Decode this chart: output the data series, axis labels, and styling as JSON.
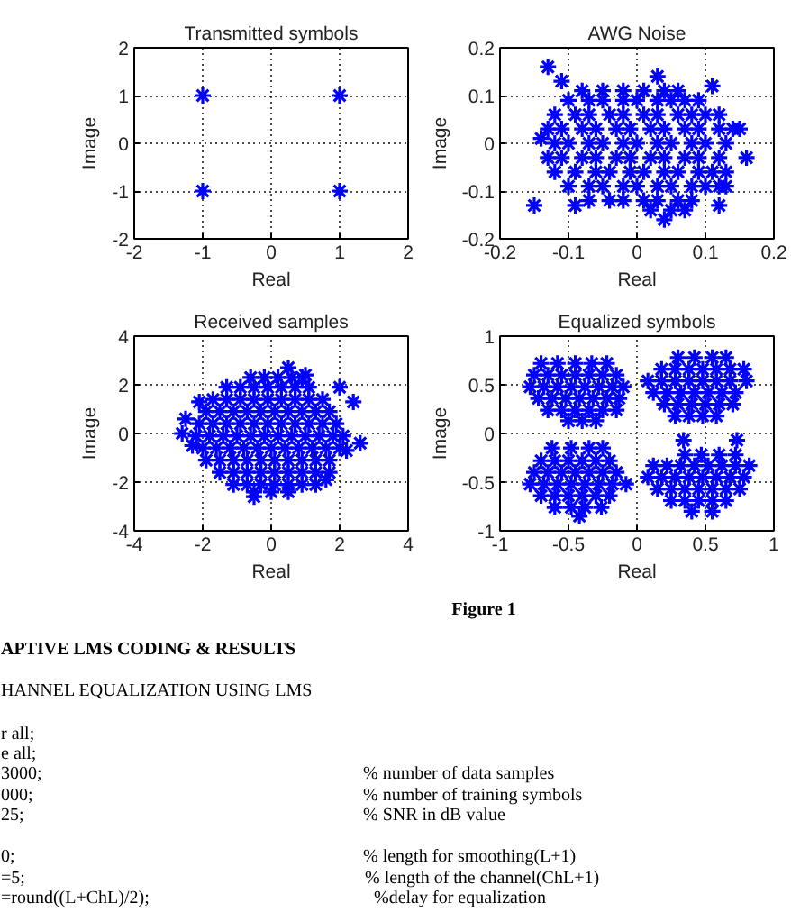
{
  "chart_data": [
    {
      "type": "scatter",
      "title": "Transmitted symbols",
      "xlabel": "Real",
      "ylabel": "Image",
      "xlim": [
        -2,
        2
      ],
      "ylim": [
        -2,
        2
      ],
      "xticks": [
        -2,
        -1,
        0,
        1,
        2
      ],
      "yticks": [
        -2,
        -1,
        0,
        1,
        2
      ],
      "grid": true,
      "marker": "cross",
      "color": "#0000ff",
      "x": [
        -1,
        1,
        -1,
        1
      ],
      "values": [
        1,
        1,
        -1,
        -1
      ]
    },
    {
      "type": "scatter",
      "title": "AWG Noise",
      "xlabel": "Real",
      "ylabel": "Image",
      "xlim": [
        -0.2,
        0.2
      ],
      "ylim": [
        -0.2,
        0.2
      ],
      "xticks": [
        -0.2,
        -0.1,
        0,
        0.1,
        0.2
      ],
      "yticks": [
        -0.2,
        -0.1,
        0,
        0.1,
        0.2
      ],
      "grid": true,
      "marker": "cross",
      "color": "#0000ff",
      "x": [
        -0.08,
        -0.05,
        -0.02,
        0.01,
        0.04,
        0.06,
        -0.1,
        -0.07,
        -0.05,
        -0.02,
        0,
        0.03,
        0.05,
        0.07,
        0.09,
        -0.12,
        -0.09,
        -0.07,
        -0.04,
        -0.02,
        0.01,
        0.03,
        0.06,
        0.08,
        0.1,
        0.12,
        -0.13,
        -0.11,
        -0.08,
        -0.06,
        -0.03,
        -0.01,
        0.02,
        0.04,
        0.07,
        0.09,
        0.12,
        0.14,
        -0.12,
        -0.1,
        -0.07,
        -0.05,
        -0.02,
        0,
        0.03,
        0.05,
        0.08,
        0.1,
        0.13,
        -0.13,
        -0.11,
        -0.08,
        -0.06,
        -0.03,
        -0.01,
        0.02,
        0.04,
        0.07,
        0.09,
        0.12,
        -0.12,
        -0.09,
        -0.06,
        -0.04,
        -0.01,
        0.01,
        0.04,
        0.06,
        0.09,
        0.11,
        0.13,
        -0.1,
        -0.07,
        -0.05,
        -0.02,
        0,
        0.03,
        0.05,
        0.08,
        0.1,
        0.12,
        -0.07,
        -0.04,
        -0.02,
        0.01,
        0.03,
        0.06,
        0.08,
        0.02,
        0.05,
        -0.13,
        -0.11,
        -0.15,
        -0.09,
        0.04,
        0.07,
        0.12,
        0.16,
        0.15,
        0.11,
        0.03,
        -0.14,
        0.13
      ],
      "values": [
        0.11,
        0.11,
        0.11,
        0.11,
        0.11,
        0.11,
        0.09,
        0.09,
        0.09,
        0.09,
        0.09,
        0.09,
        0.09,
        0.09,
        0.09,
        0.06,
        0.06,
        0.06,
        0.06,
        0.06,
        0.06,
        0.06,
        0.06,
        0.06,
        0.06,
        0.06,
        0.03,
        0.03,
        0.03,
        0.03,
        0.03,
        0.03,
        0.03,
        0.03,
        0.03,
        0.03,
        0.03,
        0.03,
        0,
        0,
        0,
        0,
        0,
        0,
        0,
        0,
        0,
        0,
        0,
        -0.03,
        -0.03,
        -0.03,
        -0.03,
        -0.03,
        -0.03,
        -0.03,
        -0.03,
        -0.03,
        -0.03,
        -0.03,
        -0.06,
        -0.06,
        -0.06,
        -0.06,
        -0.06,
        -0.06,
        -0.06,
        -0.06,
        -0.06,
        -0.06,
        -0.06,
        -0.09,
        -0.09,
        -0.09,
        -0.09,
        -0.09,
        -0.09,
        -0.09,
        -0.09,
        -0.09,
        -0.09,
        -0.12,
        -0.12,
        -0.12,
        -0.12,
        -0.12,
        -0.12,
        -0.12,
        -0.14,
        -0.14,
        0.16,
        0.13,
        -0.13,
        -0.13,
        -0.16,
        -0.14,
        -0.13,
        -0.03,
        0.03,
        0.12,
        0.14,
        0.01,
        -0.09
      ]
    },
    {
      "type": "scatter",
      "title": "Received samples",
      "xlabel": "Real",
      "ylabel": "Image",
      "xlim": [
        -4,
        4
      ],
      "ylim": [
        -4,
        4
      ],
      "xticks": [
        -4,
        -2,
        0,
        2,
        4
      ],
      "yticks": [
        -4,
        -2,
        0,
        2,
        4
      ],
      "grid": true,
      "marker": "cross",
      "color": "#0000ff",
      "x": [
        -0.6,
        -0.2,
        0.2,
        0.6,
        0.9,
        -1.3,
        -0.9,
        -0.5,
        -0.1,
        0.3,
        0.7,
        1.1,
        -1.7,
        -1.3,
        -0.9,
        -0.5,
        -0.1,
        0.3,
        0.7,
        1.1,
        1.5,
        -1.9,
        -1.5,
        -1.1,
        -0.7,
        -0.3,
        0.1,
        0.5,
        0.9,
        1.3,
        1.7,
        -2.1,
        -1.7,
        -1.3,
        -0.9,
        -0.5,
        -0.1,
        0.3,
        0.7,
        1.1,
        1.5,
        1.9,
        -2.2,
        -1.8,
        -1.4,
        -1,
        -0.6,
        -0.2,
        0.2,
        0.6,
        1,
        1.4,
        1.8,
        2.1,
        -2,
        -1.6,
        -1.2,
        -0.8,
        -0.4,
        0,
        0.4,
        0.8,
        1.2,
        1.6,
        2,
        -1.9,
        -1.5,
        -1.1,
        -0.7,
        -0.3,
        0.1,
        0.5,
        0.9,
        1.3,
        1.7,
        -1.5,
        -1.1,
        -0.7,
        -0.3,
        0.1,
        0.5,
        0.9,
        1.3,
        1.7,
        -1.1,
        -0.7,
        -0.3,
        0.1,
        0.5,
        0.9,
        1.3,
        -0.5,
        0,
        0.5,
        -2.6,
        -2.5,
        2.4,
        2,
        1,
        0.5,
        2.6,
        2.2,
        1.6,
        -0.5,
        -2.3,
        -2.1
      ],
      "values": [
        2.3,
        2.3,
        2.3,
        2.3,
        2.3,
        1.9,
        1.9,
        1.9,
        1.9,
        1.9,
        1.9,
        1.9,
        1.4,
        1.4,
        1.4,
        1.4,
        1.4,
        1.4,
        1.4,
        1.4,
        1.4,
        0.9,
        0.9,
        0.9,
        0.9,
        0.9,
        0.9,
        0.9,
        0.9,
        0.9,
        0.9,
        0.4,
        0.4,
        0.4,
        0.4,
        0.4,
        0.4,
        0.4,
        0.4,
        0.4,
        0.4,
        0.4,
        -0.1,
        -0.1,
        -0.1,
        -0.1,
        -0.1,
        -0.1,
        -0.1,
        -0.1,
        -0.1,
        -0.1,
        -0.1,
        -0.1,
        -0.6,
        -0.6,
        -0.6,
        -0.6,
        -0.6,
        -0.6,
        -0.6,
        -0.6,
        -0.6,
        -0.6,
        -0.6,
        -1.1,
        -1.1,
        -1.1,
        -1.1,
        -1.1,
        -1.1,
        -1.1,
        -1.1,
        -1.1,
        -1.1,
        -1.6,
        -1.6,
        -1.6,
        -1.6,
        -1.6,
        -1.6,
        -1.6,
        -1.6,
        -1.6,
        -2.1,
        -2.1,
        -2.1,
        -2.1,
        -2.1,
        -2.1,
        -2.1,
        -2.4,
        -2.4,
        -2.4,
        0,
        0.6,
        1.3,
        1.9,
        2.4,
        2.7,
        -0.4,
        -0.7,
        -1.9,
        -2.6,
        -0.5,
        1.3
      ]
    },
    {
      "type": "scatter",
      "title": "Equalized symbols",
      "xlabel": "Real",
      "ylabel": "Image",
      "xlim": [
        -1,
        1
      ],
      "ylim": [
        -1,
        1
      ],
      "xticks": [
        -1,
        -0.5,
        0,
        0.5,
        1
      ],
      "yticks": [
        -1,
        -0.5,
        0,
        0.5,
        1
      ],
      "grid": true,
      "marker": "cross",
      "color": "#0000ff",
      "x": [
        -0.7,
        -0.58,
        -0.45,
        -0.33,
        -0.22,
        -0.75,
        -0.65,
        -0.55,
        -0.45,
        -0.35,
        -0.25,
        -0.15,
        -0.78,
        -0.68,
        -0.58,
        -0.48,
        -0.38,
        -0.28,
        -0.18,
        -0.1,
        -0.72,
        -0.62,
        -0.52,
        -0.42,
        -0.32,
        -0.22,
        -0.13,
        -0.65,
        -0.55,
        -0.45,
        -0.35,
        -0.25,
        -0.15,
        -0.5,
        -0.4,
        -0.3,
        0.3,
        0.42,
        0.55,
        0.65,
        0.18,
        0.28,
        0.38,
        0.48,
        0.58,
        0.68,
        0.78,
        0.08,
        0.18,
        0.28,
        0.38,
        0.48,
        0.58,
        0.68,
        0.8,
        0.12,
        0.22,
        0.32,
        0.42,
        0.52,
        0.62,
        0.72,
        0.2,
        0.3,
        0.4,
        0.5,
        0.6,
        0.7,
        0.28,
        0.38,
        0.48,
        0.58,
        0.34,
        0.73,
        -0.62,
        -0.48,
        -0.35,
        -0.25,
        -0.7,
        -0.6,
        -0.5,
        -0.4,
        -0.3,
        -0.2,
        -0.75,
        -0.65,
        -0.55,
        -0.45,
        -0.35,
        -0.25,
        -0.15,
        -0.78,
        -0.68,
        -0.58,
        -0.48,
        -0.38,
        -0.28,
        -0.18,
        -0.08,
        -0.7,
        -0.6,
        -0.5,
        -0.4,
        -0.3,
        -0.2,
        -0.6,
        -0.48,
        -0.38,
        -0.26,
        -0.42,
        0.35,
        0.47,
        0.6,
        0.72,
        0.12,
        0.22,
        0.32,
        0.42,
        0.52,
        0.62,
        0.72,
        0.82,
        0.08,
        0.18,
        0.28,
        0.38,
        0.48,
        0.58,
        0.68,
        0.78,
        0.15,
        0.25,
        0.35,
        0.45,
        0.55,
        0.65,
        0.75,
        0.25,
        0.35,
        0.45,
        0.55,
        0.65,
        0.4,
        0.55
      ],
      "values": [
        0.72,
        0.72,
        0.72,
        0.72,
        0.72,
        0.6,
        0.6,
        0.6,
        0.6,
        0.6,
        0.6,
        0.6,
        0.48,
        0.48,
        0.48,
        0.48,
        0.48,
        0.48,
        0.48,
        0.48,
        0.36,
        0.36,
        0.36,
        0.36,
        0.36,
        0.36,
        0.36,
        0.24,
        0.24,
        0.24,
        0.24,
        0.24,
        0.24,
        0.13,
        0.13,
        0.13,
        0.78,
        0.78,
        0.78,
        0.78,
        0.66,
        0.66,
        0.66,
        0.66,
        0.66,
        0.66,
        0.66,
        0.54,
        0.54,
        0.54,
        0.54,
        0.54,
        0.54,
        0.54,
        0.54,
        0.42,
        0.42,
        0.42,
        0.42,
        0.42,
        0.42,
        0.42,
        0.3,
        0.3,
        0.3,
        0.3,
        0.3,
        0.3,
        0.18,
        0.18,
        0.18,
        0.18,
        -0.07,
        -0.07,
        -0.15,
        -0.15,
        -0.15,
        -0.15,
        -0.28,
        -0.28,
        -0.28,
        -0.28,
        -0.28,
        -0.28,
        -0.4,
        -0.4,
        -0.4,
        -0.4,
        -0.4,
        -0.4,
        -0.4,
        -0.52,
        -0.52,
        -0.52,
        -0.52,
        -0.52,
        -0.52,
        -0.52,
        -0.52,
        -0.64,
        -0.64,
        -0.64,
        -0.64,
        -0.64,
        -0.64,
        -0.76,
        -0.76,
        -0.76,
        -0.76,
        -0.85,
        -0.22,
        -0.22,
        -0.22,
        -0.22,
        -0.33,
        -0.33,
        -0.33,
        -0.33,
        -0.33,
        -0.33,
        -0.33,
        -0.33,
        -0.45,
        -0.45,
        -0.45,
        -0.45,
        -0.45,
        -0.45,
        -0.45,
        -0.45,
        -0.57,
        -0.57,
        -0.57,
        -0.57,
        -0.57,
        -0.57,
        -0.57,
        -0.69,
        -0.69,
        -0.69,
        -0.69,
        -0.69,
        -0.8,
        -0.8
      ]
    },
    {
      "type": "other",
      "annotations": [
        "Figure 1",
        "APTIVE LMS CODING & RESULTS",
        "HANNEL EQUALIZATION USING LMS",
        "r all;",
        "e all;",
        "3000;",
        "% number of data samples",
        "000;",
        "% number of training symbols",
        "25;",
        "% SNR in dB value",
        "0;",
        "% length for smoothing(L+1)",
        "=5;",
        "% length of the channel(ChL+1)",
        "=round((L+ChL)/2);",
        "%delay for equalization"
      ]
    }
  ]
}
